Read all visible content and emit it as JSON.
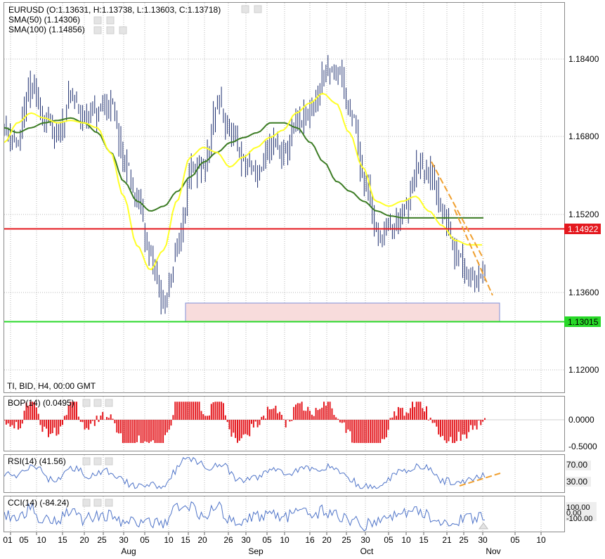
{
  "main_panel": {
    "header_lines": [
      "EURUSD (O:1.13631, H:1.13738, L:1.13603, C:1.13718)",
      "SMA(50) (1.14306)",
      "SMA(100) (1.14856)"
    ],
    "footer_info": "TI, BID, H4, 00:00 GMT",
    "price_ticks": [
      "1.18400",
      "1.16800",
      "1.15200",
      "1.13600",
      "1.12000"
    ],
    "resistance_label": "1.14922",
    "support_label": "1.13015"
  },
  "bop_panel": {
    "label": "BOP(14) (0.0495)",
    "ticks": [
      "0.0000",
      "-0.5000"
    ]
  },
  "rsi_panel": {
    "label": "RSI(14) (41.56)",
    "ticks": [
      "70.00",
      "30.00"
    ]
  },
  "cci_panel": {
    "label": "CCI(14) (-84.24)",
    "ticks": [
      "100.00",
      "0.00",
      "-100.00"
    ]
  },
  "x_axis": {
    "day_labels": [
      "01",
      "05",
      "10",
      "15",
      "20",
      "25",
      "30",
      "05",
      "10",
      "15",
      "20",
      "26",
      "30",
      "05",
      "10",
      "16",
      "20",
      "25",
      "30",
      "05",
      "10",
      "15",
      "21",
      "25",
      "30",
      "05",
      "10"
    ],
    "month_labels": [
      "Aug",
      "Sep",
      "Oct",
      "Nov"
    ]
  },
  "colors": {
    "price_bars": "#1c2d6e",
    "sma50": "#ffff26",
    "sma100": "#3c7c24",
    "resistance": "#e4181e",
    "support": "#28d828",
    "zone_fill": "#f8dcdc",
    "zone_border": "#7f8fd8",
    "trend": "#f0a030",
    "bop_bars": "#e4181e",
    "osc_line": "#4f74c8"
  },
  "chart_data": [
    {
      "type": "line",
      "title": "EURUSD H4",
      "series": [
        {
          "name": "EURUSD",
          "values": [
            1.167,
            1.164,
            1.1755,
            1.169,
            1.165,
            1.1735,
            1.169,
            1.17,
            1.172,
            1.16,
            1.152,
            1.14,
            1.131,
            1.143,
            1.158,
            1.159,
            1.172,
            1.165,
            1.16,
            1.158,
            1.164,
            1.162,
            1.168,
            1.17,
            1.178,
            1.179,
            1.17,
            1.156,
            1.145,
            1.147,
            1.15,
            1.159,
            1.157,
            1.148,
            1.141,
            1.137,
            1.1372
          ]
        },
        {
          "name": "SMA(50)",
          "values": [
            1.164,
            1.168,
            1.17,
            1.169,
            1.168,
            1.1685,
            1.168,
            1.167,
            1.162,
            1.153,
            1.143,
            1.138,
            1.142,
            1.152,
            1.161,
            1.163,
            1.162,
            1.159,
            1.161,
            1.163,
            1.165,
            1.1665,
            1.17,
            1.172,
            1.174,
            1.172,
            1.166,
            1.159,
            1.152,
            1.151,
            1.152,
            1.153,
            1.15,
            1.147,
            1.144,
            1.1431,
            1.1431
          ]
        },
        {
          "name": "SMA(100)",
          "values": [
            1.167,
            1.166,
            1.167,
            1.168,
            1.1685,
            1.169,
            1.168,
            1.166,
            1.162,
            1.156,
            1.152,
            1.15,
            1.151,
            1.154,
            1.157,
            1.16,
            1.162,
            1.164,
            1.165,
            1.166,
            1.168,
            1.168,
            1.167,
            1.164,
            1.16,
            1.156,
            1.154,
            1.152,
            1.15,
            1.149,
            1.1486,
            1.1486,
            1.1486,
            1.1486,
            1.1486,
            1.1486,
            1.1486
          ]
        }
      ],
      "levels": {
        "resistance": 1.14922,
        "support": 1.13015
      },
      "ylim": [
        1.113,
        1.1925
      ]
    },
    {
      "type": "bar",
      "title": "BOP(14)",
      "ylim": [
        -0.6,
        0.45
      ]
    },
    {
      "type": "line",
      "title": "RSI(14)",
      "ylim": [
        15,
        85
      ]
    },
    {
      "type": "line",
      "title": "CCI(14)",
      "ylim": [
        -200,
        250
      ]
    }
  ]
}
